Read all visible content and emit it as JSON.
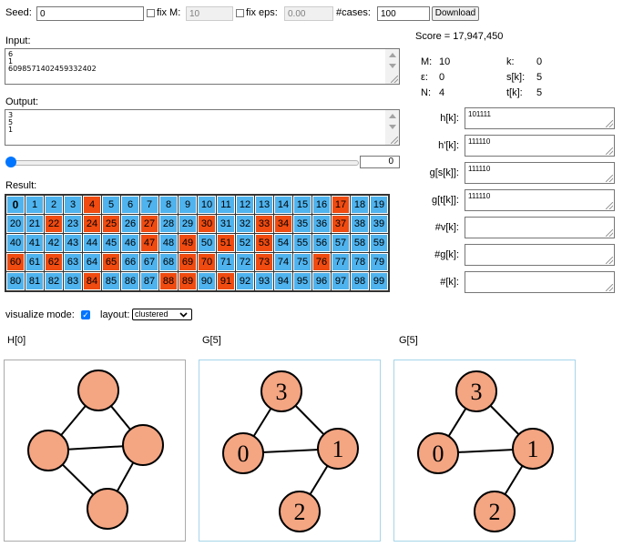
{
  "controls": {
    "seed_label": "Seed:",
    "seed_value": "0",
    "fixm_label": "fix M:",
    "fixm_value": "10",
    "fixeps_label": "fix eps:",
    "fixeps_value": "0.00",
    "cases_label": "#cases:",
    "cases_value": "100",
    "download_label": "Download"
  },
  "input": {
    "label": "Input:",
    "lines": [
      "6",
      "1",
      "6098571402459332402"
    ]
  },
  "output": {
    "label": "Output:",
    "lines": [
      "3",
      "5",
      "1"
    ]
  },
  "slider": {
    "value": "0",
    "fraction": 0
  },
  "score": "Score = 17,947,450",
  "params": {
    "m_label": "M:",
    "m_value": "10",
    "k_label": "k:",
    "k_value": "0",
    "eps_label": "ε:",
    "eps_value": "0",
    "sk_label": "s[k]:",
    "sk_value": "5",
    "n_label": "N:",
    "n_value": "4",
    "tk_label": "t[k]:",
    "tk_value": "5"
  },
  "fields": [
    {
      "label": "h[k]:",
      "value": "101111"
    },
    {
      "label": "h'[k]:",
      "value": "111110"
    },
    {
      "label": "g[s[k]]:",
      "value": "111110"
    },
    {
      "label": "g[t[k]]:",
      "value": "111110"
    },
    {
      "label": "#v[k]:",
      "value": ""
    },
    {
      "label": "#g[k]:",
      "value": ""
    },
    {
      "label": "#[k]:",
      "value": ""
    }
  ],
  "result": {
    "label": "Result:",
    "cells": [
      "0",
      "1",
      "2",
      "3",
      "4",
      "5",
      "6",
      "7",
      "8",
      "9",
      "10",
      "11",
      "12",
      "13",
      "14",
      "15",
      "16",
      "17",
      "18",
      "19",
      "20",
      "21",
      "22",
      "23",
      "24",
      "25",
      "26",
      "27",
      "28",
      "29",
      "30",
      "31",
      "32",
      "33",
      "34",
      "35",
      "36",
      "37",
      "38",
      "39",
      "40",
      "41",
      "42",
      "43",
      "44",
      "45",
      "46",
      "47",
      "48",
      "49",
      "50",
      "51",
      "52",
      "53",
      "54",
      "55",
      "56",
      "57",
      "58",
      "59",
      "60",
      "61",
      "62",
      "63",
      "64",
      "65",
      "66",
      "67",
      "68",
      "69",
      "70",
      "71",
      "72",
      "73",
      "74",
      "75",
      "76",
      "77",
      "78",
      "79",
      "80",
      "81",
      "82",
      "83",
      "84",
      "85",
      "86",
      "87",
      "88",
      "89",
      "90",
      "91",
      "92",
      "93",
      "94",
      "95",
      "96",
      "97",
      "98",
      "99"
    ],
    "orange": [
      4,
      17,
      22,
      24,
      25,
      27,
      30,
      33,
      34,
      37,
      47,
      49,
      51,
      53,
      60,
      62,
      65,
      69,
      70,
      73,
      76,
      84,
      88,
      89,
      91
    ],
    "selected": 0,
    "colors": {
      "blue": "#4fb3ee",
      "orange": "#f04b10"
    }
  },
  "visualize": {
    "mode_label": "visualize mode:",
    "mode_checked": true,
    "layout_label": "layout:",
    "layout_value": "clustered"
  },
  "graphs": [
    {
      "title": "H[0]",
      "labels": [
        "",
        "",
        "",
        ""
      ]
    },
    {
      "title": "G[5]",
      "labels": [
        "3",
        "0",
        "1",
        "2"
      ]
    },
    {
      "title": "G[5]",
      "labels": [
        "3",
        "0",
        "1",
        "2"
      ]
    }
  ],
  "node_color": "#f4a582"
}
